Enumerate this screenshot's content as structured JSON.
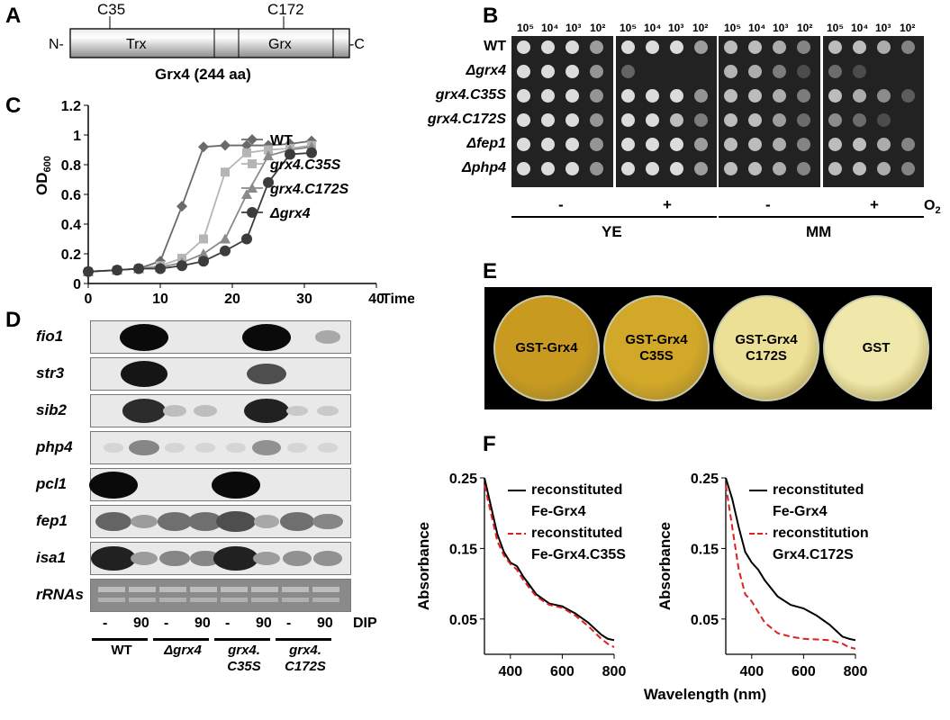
{
  "panelA": {
    "letter": "A",
    "site1": "C35",
    "site2": "C172",
    "n_term": "N-",
    "c_term": "-C",
    "domain1": "Trx",
    "domain2": "Grx",
    "caption": "Grx4 (244 aa)"
  },
  "panelB": {
    "letter": "B",
    "dilutions": [
      "10⁵",
      "10⁴",
      "10³",
      "10²"
    ],
    "strains": [
      "WT",
      "Δgrx4",
      "grx4.C35S",
      "grx4.C172S",
      "Δfep1",
      "Δphp4"
    ],
    "conditions": [
      "-",
      "+",
      "-",
      "+"
    ],
    "o2_label": "O",
    "o2_sub": "2",
    "medium1": "YE",
    "medium2": "MM"
  },
  "panelC": {
    "letter": "C",
    "xlabel": "Time (h)",
    "ylabel": "OD",
    "ylabel_sub": "600",
    "x_ticks": [
      "0",
      "10",
      "20",
      "30",
      "40"
    ],
    "y_ticks": [
      "0",
      "0.2",
      "0.4",
      "0.6",
      "0.8",
      "1",
      "1.2"
    ]
  },
  "chart_data": [
    {
      "type": "line",
      "xlabel": "Time (h)",
      "ylabel": "OD600",
      "xlim": [
        0,
        40
      ],
      "ylim": [
        0,
        1.2
      ],
      "grid": false,
      "legend": "right",
      "series": [
        {
          "name": "WT",
          "marker": "diamond",
          "color": "#6a6a6a",
          "x": [
            0,
            4,
            7,
            10,
            13,
            16,
            19,
            22,
            25,
            28,
            31
          ],
          "y": [
            0.08,
            0.09,
            0.1,
            0.15,
            0.52,
            0.92,
            0.93,
            0.93,
            0.93,
            0.94,
            0.96
          ]
        },
        {
          "name": "grx4.C35S",
          "marker": "square",
          "color": "#b5b5b5",
          "x": [
            0,
            4,
            7,
            10,
            13,
            16,
            19,
            22,
            25,
            28,
            31
          ],
          "y": [
            0.08,
            0.09,
            0.1,
            0.12,
            0.17,
            0.3,
            0.75,
            0.88,
            0.9,
            0.91,
            0.93
          ]
        },
        {
          "name": "grx4.C172S",
          "marker": "triangle",
          "color": "#8a8a8a",
          "x": [
            0,
            4,
            7,
            10,
            13,
            16,
            19,
            22,
            25,
            28,
            31
          ],
          "y": [
            0.08,
            0.09,
            0.1,
            0.11,
            0.14,
            0.2,
            0.3,
            0.6,
            0.86,
            0.9,
            0.92
          ]
        },
        {
          "name": "Δgrx4",
          "marker": "circle",
          "color": "#3c3c3c",
          "x": [
            0,
            4,
            7,
            10,
            13,
            16,
            19,
            22,
            25,
            28,
            31
          ],
          "y": [
            0.08,
            0.09,
            0.1,
            0.1,
            0.12,
            0.15,
            0.22,
            0.3,
            0.68,
            0.87,
            0.88
          ]
        }
      ]
    },
    {
      "type": "line",
      "xlabel": "Wavelength (nm)",
      "ylabel": "Absorbance",
      "xlim": [
        300,
        800
      ],
      "ylim": [
        0,
        0.25
      ],
      "series": [
        {
          "name": "reconstituted Fe-Grx4",
          "style": "solid",
          "color": "#000000",
          "x": [
            300,
            325,
            350,
            375,
            400,
            425,
            450,
            500,
            550,
            600,
            650,
            700,
            750,
            775,
            800
          ],
          "y": [
            0.25,
            0.21,
            0.17,
            0.145,
            0.13,
            0.125,
            0.11,
            0.085,
            0.072,
            0.068,
            0.058,
            0.045,
            0.028,
            0.022,
            0.02
          ]
        },
        {
          "name": "reconstituted Fe-Grx4.C35S",
          "style": "dashed",
          "color": "#e02020",
          "x": [
            300,
            325,
            350,
            375,
            400,
            425,
            450,
            500,
            550,
            600,
            650,
            700,
            750,
            775,
            800
          ],
          "y": [
            0.24,
            0.2,
            0.16,
            0.14,
            0.128,
            0.12,
            0.105,
            0.082,
            0.07,
            0.066,
            0.055,
            0.04,
            0.022,
            0.015,
            0.01
          ]
        }
      ]
    },
    {
      "type": "line",
      "xlabel": "Wavelength (nm)",
      "ylabel": "Absorbance",
      "xlim": [
        300,
        800
      ],
      "ylim": [
        0,
        0.25
      ],
      "series": [
        {
          "name": "reconstituted Fe-Grx4",
          "style": "solid",
          "color": "#000000",
          "x": [
            300,
            325,
            350,
            375,
            400,
            425,
            450,
            500,
            550,
            600,
            650,
            700,
            750,
            775,
            800
          ],
          "y": [
            0.25,
            0.22,
            0.18,
            0.145,
            0.13,
            0.12,
            0.105,
            0.082,
            0.07,
            0.065,
            0.055,
            0.042,
            0.025,
            0.022,
            0.02
          ]
        },
        {
          "name": "reconstitution Grx4.C172S",
          "style": "dashed",
          "color": "#e02020",
          "x": [
            300,
            325,
            350,
            375,
            400,
            425,
            450,
            500,
            550,
            600,
            650,
            700,
            750,
            775,
            800
          ],
          "y": [
            0.24,
            0.18,
            0.12,
            0.085,
            0.075,
            0.06,
            0.045,
            0.03,
            0.025,
            0.022,
            0.021,
            0.02,
            0.015,
            0.01,
            0.008
          ]
        }
      ]
    }
  ],
  "panelD": {
    "letter": "D",
    "genes": [
      "fio1",
      "str3",
      "sib2",
      "php4",
      "pcl1",
      "fep1",
      "isa1",
      "rRNAs"
    ],
    "lane_labels": [
      "-",
      "90",
      "-",
      "90",
      "-",
      "90",
      "-",
      "90"
    ],
    "dip_label": "DIP",
    "groups": [
      "WT",
      "Δgrx4",
      "grx4.",
      "grx4."
    ],
    "groups_line2": [
      "",
      "",
      "C35S",
      "C172S"
    ],
    "band_intensity": {
      "fio1": [
        0,
        1,
        0,
        0,
        0,
        1,
        0,
        0.3
      ],
      "str3": [
        0,
        0.95,
        0,
        0,
        0,
        0.7,
        0,
        0
      ],
      "sib2": [
        0,
        0.85,
        0.2,
        0.2,
        0,
        0.9,
        0.15,
        0.15
      ],
      "php4": [
        0.1,
        0.45,
        0.1,
        0.1,
        0.1,
        0.4,
        0.1,
        0.1
      ],
      "pcl1": [
        1,
        0,
        0,
        0,
        1,
        0,
        0,
        0
      ],
      "fep1": [
        0.6,
        0.35,
        0.55,
        0.55,
        0.7,
        0.3,
        0.55,
        0.45
      ],
      "isa1": [
        0.9,
        0.35,
        0.45,
        0.45,
        0.9,
        0.35,
        0.4,
        0.4
      ]
    }
  },
  "panelE": {
    "letter": "E",
    "discs": [
      {
        "line1": "GST-Grx4",
        "line2": "",
        "color": "#c89a20"
      },
      {
        "line1": "GST-Grx4",
        "line2": "C35S",
        "color": "#d2a828"
      },
      {
        "line1": "GST-Grx4",
        "line2": "C172S",
        "color": "#ecdf96"
      },
      {
        "line1": "GST",
        "line2": "",
        "color": "#efe8aa"
      }
    ]
  },
  "panelF": {
    "letter": "F",
    "ylabel": "Absorbance",
    "xlabel": "Wavelength (nm)",
    "x_ticks": [
      "400",
      "600",
      "800"
    ],
    "y_ticks": [
      "0.05",
      "0.15",
      "0.25"
    ],
    "left_legend": [
      "reconstituted",
      "Fe-Grx4",
      "reconstituted",
      "Fe-Grx4.C35S"
    ],
    "right_legend": [
      "reconstituted",
      "Fe-Grx4",
      "reconstitution",
      "Grx4.C172S"
    ]
  }
}
